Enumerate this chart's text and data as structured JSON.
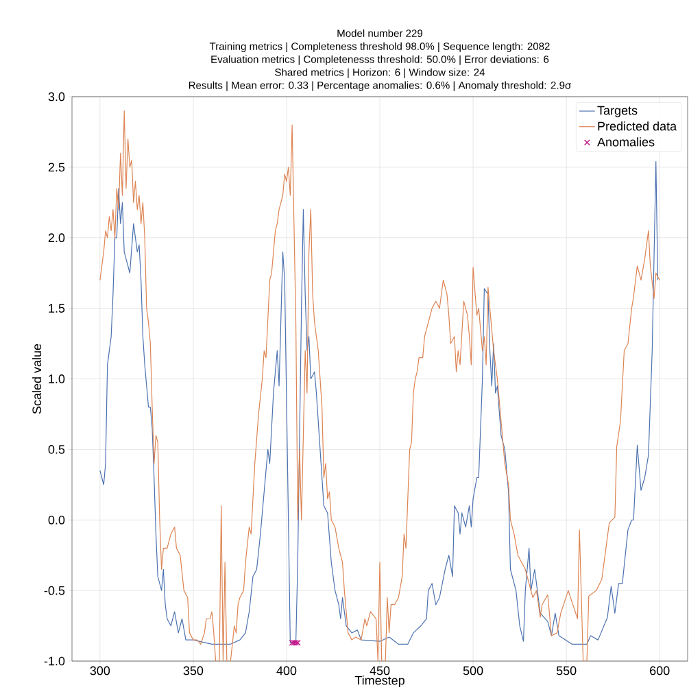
{
  "chart_data": {
    "type": "line",
    "title": "Model number 229",
    "annotations": [
      "Training metrics | Completeness threshold 98.0% | Sequence length: 2082",
      "Evaluation metrics | Completenesss threshold: 50.0% | Error deviations: 6",
      "Shared metrics | Horizon: 6 | Window size: 24",
      "Results | Mean error: 0.33 | Percentage anomalies: 0.6% | Anomaly threshold: 2.9σ"
    ],
    "xlabel": "Timestep",
    "ylabel": "Scaled value",
    "xlim": [
      285,
      615
    ],
    "ylim": [
      -1.0,
      3.0
    ],
    "xticks": [
      300,
      350,
      400,
      450,
      500,
      550,
      600
    ],
    "yticks": [
      {
        "value": -1,
        "label": "-1.0"
      },
      -0.5,
      {
        "value": 0,
        "label": "0.0"
      },
      0.5,
      {
        "value": 1,
        "label": "1.0"
      },
      1.5,
      {
        "value": 2,
        "label": "2.0"
      },
      2.5,
      {
        "value": 3,
        "label": "3.0"
      }
    ],
    "grid": true,
    "legend": "top right",
    "marker": "none",
    "line_style": "solid",
    "series": [
      {
        "name": "Targets",
        "color": "#4c72b0",
        "x": [
          300,
          302,
          303,
          304,
          306,
          307,
          308,
          309,
          310,
          311,
          312,
          313,
          315,
          316,
          318,
          320,
          321,
          322,
          323,
          324,
          325,
          326,
          327,
          328,
          329,
          330,
          331,
          332,
          333,
          334,
          335,
          336,
          338,
          340,
          342,
          344,
          346,
          350,
          360,
          370,
          375,
          378,
          380,
          382,
          384,
          386,
          388,
          390,
          391,
          393,
          395,
          396,
          398,
          399,
          401,
          402,
          405,
          406,
          408,
          409,
          410,
          411,
          412,
          413,
          415,
          416,
          418,
          420,
          422,
          424,
          426,
          428,
          429,
          430,
          432,
          435,
          438,
          440,
          450,
          455,
          460,
          465,
          468,
          472,
          475,
          476,
          478,
          480,
          482,
          485,
          487,
          489,
          490,
          492,
          493,
          494,
          496,
          498,
          499,
          500,
          502,
          503,
          505,
          506,
          508,
          509,
          510,
          511,
          512,
          513,
          515,
          517,
          519,
          520,
          523,
          525,
          527,
          528,
          530,
          531,
          533,
          536,
          540,
          542,
          544,
          546,
          553,
          561,
          563,
          567,
          572,
          574,
          576,
          578,
          580,
          583,
          585,
          586,
          588,
          590,
          592,
          594,
          596,
          598,
          599
        ],
        "values": [
          0.35,
          0.25,
          0.4,
          1.1,
          1.3,
          1.6,
          2.0,
          2.0,
          2.35,
          2.1,
          2.25,
          1.9,
          1.8,
          1.75,
          2.1,
          1.9,
          1.95,
          1.7,
          1.3,
          1.1,
          0.95,
          0.8,
          0.8,
          0.65,
          0.3,
          -0.1,
          -0.4,
          -0.45,
          -0.5,
          -0.35,
          -0.6,
          -0.7,
          -0.75,
          -0.65,
          -0.8,
          -0.7,
          -0.85,
          -0.85,
          -0.88,
          -0.88,
          -0.85,
          -0.8,
          -0.65,
          -0.4,
          -0.35,
          -0.1,
          0.2,
          0.5,
          0.4,
          0.9,
          1.2,
          0.95,
          1.9,
          1.7,
          0.0,
          -0.87,
          -0.87,
          -0.3,
          1.5,
          2.2,
          1.6,
          1.2,
          1.3,
          1.0,
          1.05,
          0.9,
          0.5,
          0.1,
          0.05,
          -0.3,
          -0.5,
          -0.6,
          -0.7,
          -0.55,
          -0.75,
          -0.8,
          -0.78,
          -0.85,
          -0.86,
          -0.83,
          -0.88,
          -0.88,
          -0.8,
          -0.75,
          -0.7,
          -0.5,
          -0.45,
          -0.6,
          -0.55,
          -0.35,
          -0.25,
          -0.4,
          0.1,
          0.05,
          -0.1,
          0.05,
          -0.05,
          0.1,
          -0.05,
          0.15,
          0.3,
          0.3,
          1.0,
          1.64,
          1.6,
          1.2,
          0.95,
          1.25,
          0.9,
          0.95,
          0.6,
          0.5,
          0.2,
          -0.35,
          -0.5,
          -0.75,
          -0.86,
          -0.5,
          -0.2,
          -0.5,
          -0.35,
          -0.66,
          -0.72,
          -0.82,
          -0.66,
          -0.82,
          -0.88,
          -0.88,
          -0.82,
          -0.85,
          -0.69,
          -0.47,
          -0.66,
          -0.45,
          -0.45,
          -0.07,
          0.0,
          0.0,
          0.53,
          0.21,
          0.3,
          0.46,
          1.2,
          2.54,
          1.7
        ]
      },
      {
        "name": "Predicted data",
        "color": "#dd8452",
        "x": [
          300,
          302,
          303,
          304,
          305,
          306,
          307,
          308,
          309,
          310,
          311,
          312,
          313,
          314,
          315,
          316,
          317,
          318,
          319,
          320,
          321,
          322,
          323,
          324,
          325,
          326,
          327,
          328,
          329,
          330,
          331,
          332,
          333,
          334,
          336,
          338,
          340,
          341,
          343,
          345,
          347,
          348,
          350,
          352,
          354,
          356,
          357,
          359,
          360,
          361,
          362,
          364,
          365,
          366,
          367,
          368,
          370,
          372,
          373,
          374,
          375,
          377,
          378,
          380,
          381,
          383,
          385,
          387,
          388,
          389,
          391,
          392,
          394,
          395,
          396,
          398,
          399,
          400,
          401,
          402,
          403,
          405,
          406,
          407,
          408,
          409,
          410,
          411,
          412,
          413,
          414,
          415,
          416,
          417,
          418,
          419,
          420,
          421,
          422,
          423,
          424,
          426,
          428,
          430,
          431,
          433,
          435,
          437,
          440,
          442,
          443,
          445,
          448,
          449,
          450,
          451,
          453,
          454,
          455,
          456,
          458,
          460,
          462,
          463,
          464,
          466,
          467,
          468,
          469,
          470,
          471,
          473,
          474,
          476,
          478,
          480,
          482,
          484,
          486,
          487,
          488,
          490,
          491,
          492,
          493,
          495,
          497,
          498,
          499,
          500,
          502,
          503,
          505,
          506,
          507,
          508,
          509,
          511,
          513,
          515,
          517,
          519,
          520,
          522,
          524,
          526,
          528,
          530,
          532,
          534,
          536,
          537,
          540,
          542,
          545,
          547,
          551,
          556,
          557,
          559,
          561,
          562,
          566,
          569,
          573,
          576,
          577,
          579,
          581,
          583,
          585,
          586,
          588,
          590,
          592,
          594,
          595,
          597,
          598,
          600
        ],
        "values": [
          1.7,
          1.9,
          2.05,
          2.0,
          2.15,
          2.05,
          2.2,
          2.0,
          2.35,
          2.2,
          2.6,
          2.3,
          2.9,
          2.35,
          2.7,
          2.5,
          2.55,
          2.25,
          2.4,
          2.2,
          2.3,
          2.1,
          2.25,
          2.0,
          1.5,
          1.4,
          1.25,
          0.8,
          0.4,
          0.6,
          0.55,
          0.0,
          -0.35,
          -0.2,
          -0.2,
          -0.1,
          -0.05,
          -0.2,
          -0.25,
          -0.5,
          -0.55,
          -0.8,
          -0.85,
          -0.85,
          -0.88,
          -0.8,
          -0.7,
          -0.7,
          -0.65,
          -0.8,
          -1.0,
          -1.0,
          0.1,
          -1.0,
          -0.3,
          -1.0,
          -1.0,
          -0.75,
          -0.8,
          -0.6,
          -0.55,
          -0.5,
          -0.3,
          -0.05,
          -0.1,
          0.4,
          0.75,
          1.0,
          1.2,
          1.15,
          1.7,
          1.75,
          2.05,
          2.1,
          2.2,
          2.3,
          2.45,
          2.4,
          2.5,
          2.3,
          2.8,
          1.4,
          0.0,
          0.5,
          0.0,
          0.6,
          1.2,
          0.9,
          1.9,
          2.2,
          1.6,
          1.4,
          1.3,
          1.2,
          1.0,
          0.8,
          0.3,
          0.4,
          0.15,
          0.2,
          0.0,
          -0.05,
          -0.2,
          -0.3,
          -0.5,
          -0.8,
          -0.85,
          -0.83,
          -0.85,
          -0.7,
          -0.75,
          -0.65,
          -0.7,
          -1.0,
          -0.3,
          -1.0,
          -1.0,
          -0.55,
          -0.8,
          -0.6,
          -0.6,
          -0.55,
          -0.4,
          -0.1,
          -0.2,
          0.5,
          0.55,
          0.9,
          1.0,
          1.05,
          1.15,
          1.15,
          1.3,
          1.4,
          1.5,
          1.55,
          1.5,
          1.7,
          1.6,
          1.45,
          1.25,
          1.3,
          1.05,
          1.2,
          1.1,
          1.55,
          1.45,
          1.3,
          1.1,
          1.79,
          1.45,
          1.5,
          1.2,
          1.3,
          1.1,
          1.65,
          1.5,
          1.2,
          1.0,
          0.7,
          0.4,
          0.25,
          0.0,
          -0.1,
          -0.25,
          -0.3,
          -0.35,
          -0.45,
          -0.55,
          -0.5,
          -0.69,
          -0.6,
          -0.53,
          -0.82,
          -0.8,
          -0.66,
          -0.5,
          -0.7,
          -0.07,
          -1.0,
          -1.0,
          -0.54,
          -0.5,
          -0.42,
          -0.02,
          0.02,
          0.52,
          0.7,
          1.2,
          1.25,
          1.5,
          1.58,
          1.8,
          1.7,
          1.85,
          2.05,
          1.8,
          1.57,
          1.75,
          1.7
        ]
      },
      {
        "name": "Anomalies",
        "type": "scatter",
        "marker": "cross",
        "color": "#c2188b",
        "x": [
          403,
          404,
          405,
          406
        ],
        "values": [
          -0.87,
          -0.87,
          -0.87,
          -0.87
        ]
      }
    ]
  }
}
